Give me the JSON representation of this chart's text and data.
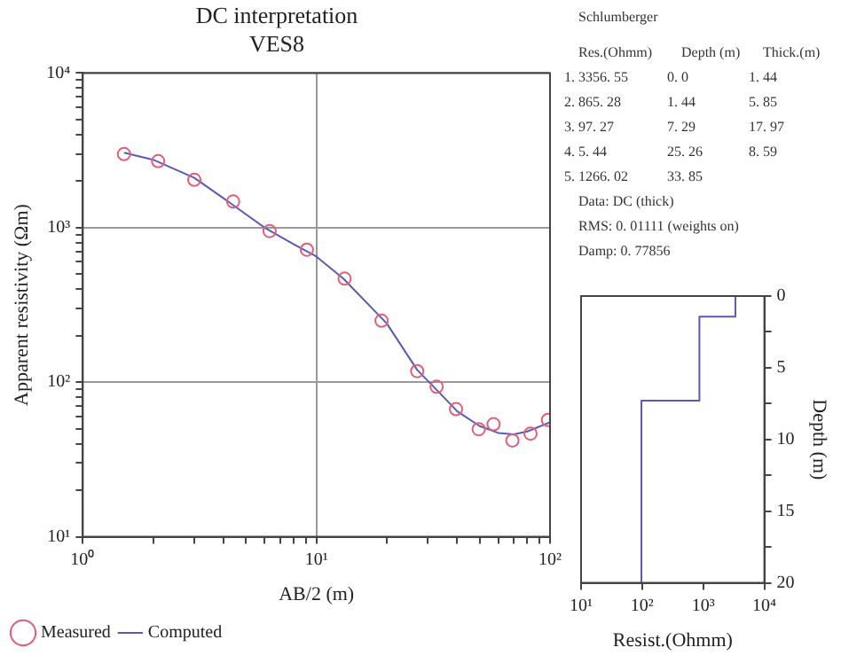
{
  "chart_data": [
    {
      "type": "line",
      "title": "DC interpretation",
      "subtitle": "VES8",
      "xlabel": "AB/2 (m)",
      "ylabel": "Apparent resistivity (Ωm)",
      "log": "xy",
      "xlim": [
        1,
        100
      ],
      "ylim": [
        10,
        10000
      ],
      "xticks": [
        {
          "value": 1,
          "label": "10⁰"
        },
        {
          "value": 2,
          "label": null
        },
        {
          "value": 3,
          "label": null
        },
        {
          "value": 4,
          "label": null
        },
        {
          "value": 5,
          "label": null
        },
        {
          "value": 6,
          "label": null
        },
        {
          "value": 7,
          "label": null
        },
        {
          "value": 8,
          "label": null
        },
        {
          "value": 9,
          "label": null
        },
        {
          "value": 10,
          "label": "10¹"
        },
        {
          "value": 20,
          "label": null
        },
        {
          "value": 30,
          "label": null
        },
        {
          "value": 40,
          "label": null
        },
        {
          "value": 50,
          "label": null
        },
        {
          "value": 60,
          "label": null
        },
        {
          "value": 70,
          "label": null
        },
        {
          "value": 80,
          "label": null
        },
        {
          "value": 90,
          "label": null
        },
        {
          "value": 100,
          "label": "10²"
        }
      ],
      "yticks": [
        {
          "value": 10,
          "label": "10¹"
        },
        {
          "value": 20,
          "label": null
        },
        {
          "value": 30,
          "label": null
        },
        {
          "value": 40,
          "label": null
        },
        {
          "value": 50,
          "label": null
        },
        {
          "value": 60,
          "label": null
        },
        {
          "value": 70,
          "label": null
        },
        {
          "value": 80,
          "label": null
        },
        {
          "value": 90,
          "label": null
        },
        {
          "value": 100,
          "label": "10²"
        },
        {
          "value": 200,
          "label": null
        },
        {
          "value": 300,
          "label": null
        },
        {
          "value": 400,
          "label": null
        },
        {
          "value": 500,
          "label": null
        },
        {
          "value": 600,
          "label": null
        },
        {
          "value": 700,
          "label": null
        },
        {
          "value": 800,
          "label": null
        },
        {
          "value": 900,
          "label": null
        },
        {
          "value": 1000,
          "label": "10³"
        },
        {
          "value": 2000,
          "label": null
        },
        {
          "value": 3000,
          "label": null
        },
        {
          "value": 4000,
          "label": null
        },
        {
          "value": 5000,
          "label": null
        },
        {
          "value": 6000,
          "label": null
        },
        {
          "value": 7000,
          "label": null
        },
        {
          "value": 8000,
          "label": null
        },
        {
          "value": 9000,
          "label": null
        },
        {
          "value": 10000,
          "label": "10⁴"
        }
      ],
      "grid": true,
      "legend": "bottom left",
      "line_style": "solid",
      "series": [
        {
          "name": "Measured",
          "type": "scatter",
          "marker": "circle",
          "color": "#e0607a",
          "x": [
            1.5,
            2.1,
            3.0,
            4.4,
            6.3,
            9.1,
            13.2,
            19,
            27,
            32.7,
            39.6,
            49.5,
            57.3,
            69,
            82.5,
            98
          ],
          "values": [
            2990,
            2690,
            2040,
            1475,
            950,
            720,
            468,
            250,
            118,
            93.5,
            67,
            49.7,
            53.5,
            42,
            46.5,
            57
          ]
        },
        {
          "name": "Computed",
          "type": "line",
          "marker": "none",
          "color": "#5a5ab4",
          "x": [
            1.5,
            2,
            3,
            4,
            6,
            8,
            10,
            13,
            20,
            27,
            33,
            40,
            50,
            60,
            70,
            80,
            100
          ],
          "values": [
            3050,
            2750,
            2100,
            1550,
            1000,
            780,
            650,
            470,
            240,
            120,
            88,
            65,
            52,
            47,
            46,
            48,
            55
          ]
        }
      ]
    },
    {
      "type": "other",
      "title": "Schlumberger",
      "annotations": [
        "Res.(Ohmm)  Depth (m)  Thick.(m)",
        "1. 3356. 55  0. 0  1. 44",
        "2. 865. 28  1. 44  5. 85",
        "3. 97. 27  7. 29  17. 97",
        "4. 5. 44  25. 26  8. 59",
        "5. 1266. 02  33. 85",
        "Data: DC (thick)",
        "RMS: 0. 01111 (weights on)",
        "Damp: 0. 77856"
      ]
    },
    {
      "type": "line",
      "xlabel": "Resist.(Ohmm)",
      "ylabel": "Depth (m)",
      "log": "x",
      "xlim": [
        10,
        10000
      ],
      "ylim": [
        20,
        0
      ],
      "xticks": [
        {
          "value": 10,
          "label": "10¹"
        },
        {
          "value": 100,
          "label": "10²"
        },
        {
          "value": 1000,
          "label": "10³"
        },
        {
          "value": 10000,
          "label": "10⁴"
        }
      ],
      "yticks": [
        0,
        {
          "value": 2.5,
          "label": null
        },
        5,
        {
          "value": 7.5,
          "label": null
        },
        10,
        {
          "value": 12.5,
          "label": null
        },
        15,
        {
          "value": 17.5,
          "label": null
        },
        20
      ],
      "series": [
        {
          "type": "line",
          "color": "#5a5ab4",
          "x": [
            3356.55,
            3356.55,
            865.28,
            865.28,
            97.27,
            97.27
          ],
          "values": [
            0,
            1.44,
            1.44,
            7.29,
            7.29,
            20
          ]
        }
      ]
    }
  ]
}
